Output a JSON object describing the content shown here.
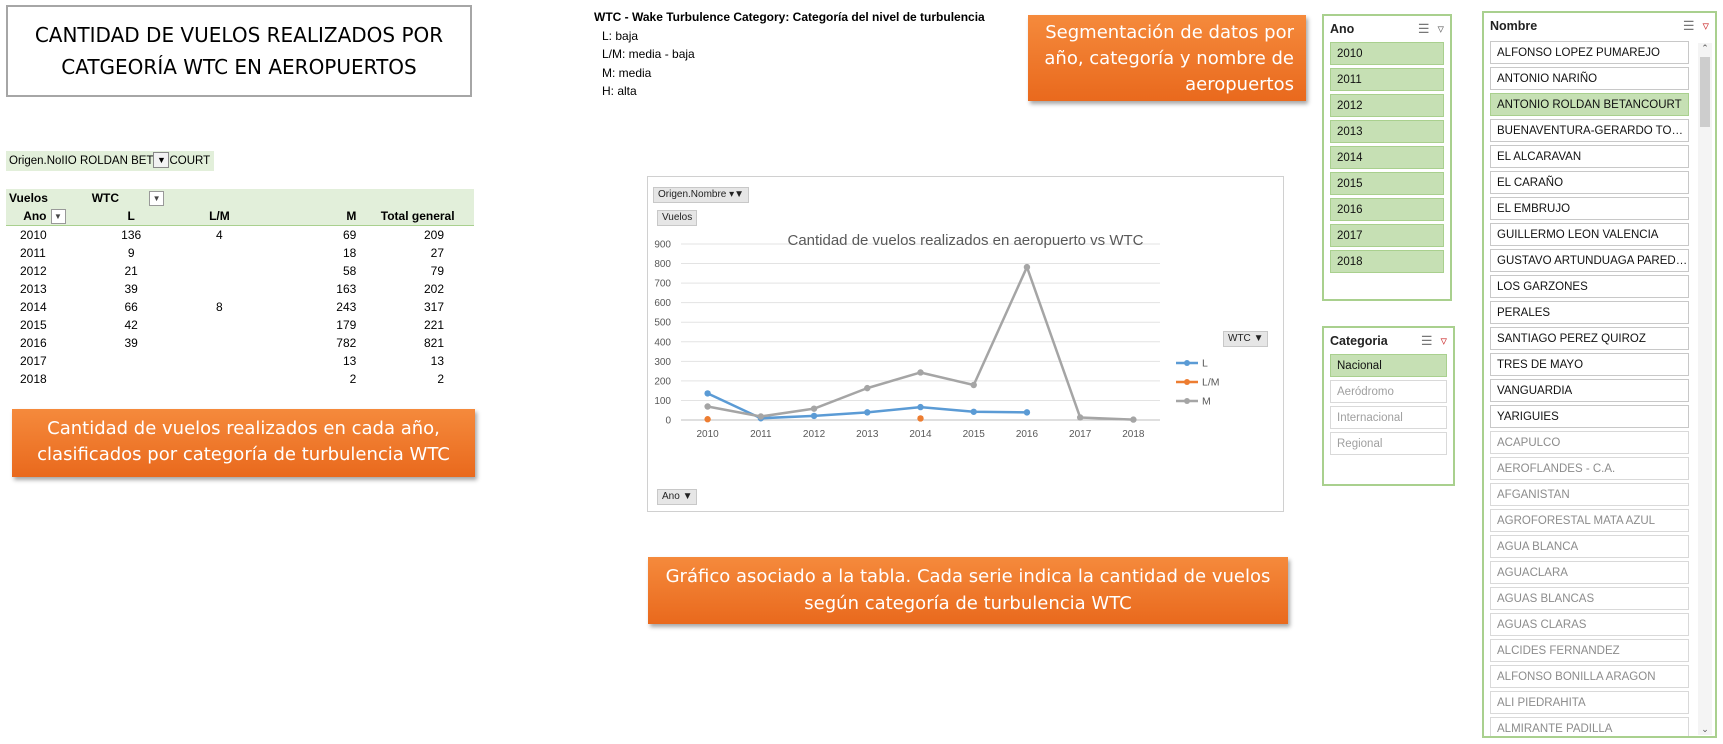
{
  "title": {
    "line1": "CANTIDAD DE VUELOS REALIZADOS POR",
    "line2": "CATGEORÍA WTC EN AEROPUERTOS"
  },
  "wtc_legend": {
    "header": "WTC - Wake Turbulence Category: Categoría del nivel de turbulencia",
    "items": [
      "L: baja",
      "L/M: media - baja",
      "M: media",
      "H: alta"
    ]
  },
  "callouts": {
    "segmentacion": "Segmentación de datos por año, categoría y nombre de aeropuertos",
    "tabla": "Cantidad de vuelos realizados en cada año, clasificados por categoría de turbulencia WTC",
    "grafico": "Gráfico asociado a la tabla. Cada serie indica la cantidad de vuelos según categoría de turbulencia WTC"
  },
  "pivot_filter": {
    "label": "Origen.No",
    "value": "IIO ROLDAN BET",
    "value_tail": "COURT",
    "icon": "filter-icon"
  },
  "pivot": {
    "value_field": "Vuelos",
    "column_field": "WTC",
    "row_field": "Ano",
    "headers": [
      "L",
      "L/M",
      "M",
      "Total general"
    ],
    "rows": [
      {
        "ano": "2010",
        "l": "136",
        "lm": "4",
        "m": "69",
        "total": "209"
      },
      {
        "ano": "2011",
        "l": "9",
        "lm": "",
        "m": "18",
        "total": "27"
      },
      {
        "ano": "2012",
        "l": "21",
        "lm": "",
        "m": "58",
        "total": "79"
      },
      {
        "ano": "2013",
        "l": "39",
        "lm": "",
        "m": "163",
        "total": "202"
      },
      {
        "ano": "2014",
        "l": "66",
        "lm": "8",
        "m": "243",
        "total": "317"
      },
      {
        "ano": "2015",
        "l": "42",
        "lm": "",
        "m": "179",
        "total": "221"
      },
      {
        "ano": "2016",
        "l": "39",
        "lm": "",
        "m": "782",
        "total": "821"
      },
      {
        "ano": "2017",
        "l": "",
        "lm": "",
        "m": "13",
        "total": "13"
      },
      {
        "ano": "2018",
        "l": "",
        "lm": "",
        "m": "2",
        "total": "2"
      }
    ]
  },
  "chart_chips": {
    "filter": "Origen.Nombre",
    "values": "Vuelos",
    "axis": "Ano",
    "legend": "WTC"
  },
  "chart_data": {
    "type": "line",
    "title": "Cantidad de vuelos realizados en aeropuerto vs WTC",
    "xlabel": "",
    "ylabel": "",
    "categories": [
      "2010",
      "2011",
      "2012",
      "2013",
      "2014",
      "2015",
      "2016",
      "2017",
      "2018"
    ],
    "ylim": [
      0,
      900
    ],
    "yticks": [
      0,
      100,
      200,
      300,
      400,
      500,
      600,
      700,
      800,
      900
    ],
    "grid": true,
    "legend": "right",
    "series": [
      {
        "name": "L",
        "color": "#5b9bd5",
        "values": [
          136,
          9,
          21,
          39,
          66,
          42,
          39,
          null,
          null
        ]
      },
      {
        "name": "L/M",
        "color": "#ed7d31",
        "values": [
          4,
          null,
          null,
          null,
          8,
          null,
          null,
          null,
          null
        ]
      },
      {
        "name": "M",
        "color": "#a5a5a5",
        "values": [
          69,
          18,
          58,
          163,
          243,
          179,
          782,
          13,
          2
        ]
      }
    ]
  },
  "slicers": {
    "ano": {
      "title": "Ano",
      "items": [
        {
          "label": "2010",
          "state": "on"
        },
        {
          "label": "2011",
          "state": "on"
        },
        {
          "label": "2012",
          "state": "on"
        },
        {
          "label": "2013",
          "state": "on"
        },
        {
          "label": "2014",
          "state": "on"
        },
        {
          "label": "2015",
          "state": "on"
        },
        {
          "label": "2016",
          "state": "on"
        },
        {
          "label": "2017",
          "state": "on"
        },
        {
          "label": "2018",
          "state": "on"
        }
      ]
    },
    "categoria": {
      "title": "Categoria",
      "items": [
        {
          "label": "Nacional",
          "state": "on"
        },
        {
          "label": "Aeródromo",
          "state": "off"
        },
        {
          "label": "Internacional",
          "state": "off"
        },
        {
          "label": "Regional",
          "state": "off"
        }
      ]
    },
    "nombre": {
      "title": "Nombre",
      "items": [
        {
          "label": "ALFONSO LOPEZ PUMAREJO",
          "state": "onw"
        },
        {
          "label": "ANTONIO NARIÑO",
          "state": "onw"
        },
        {
          "label": "ANTONIO ROLDAN BETANCOURT",
          "state": "on"
        },
        {
          "label": "BUENAVENTURA-GERARDO TOBA...",
          "state": "onw"
        },
        {
          "label": "EL ALCARAVAN",
          "state": "onw"
        },
        {
          "label": "EL CARAÑO",
          "state": "onw"
        },
        {
          "label": "EL EMBRUJO",
          "state": "onw"
        },
        {
          "label": "GUILLERMO LEON VALENCIA",
          "state": "onw"
        },
        {
          "label": "GUSTAVO ARTUNDUAGA PAREDES",
          "state": "onw"
        },
        {
          "label": "LOS GARZONES",
          "state": "onw"
        },
        {
          "label": "PERALES",
          "state": "onw"
        },
        {
          "label": "SANTIAGO PEREZ QUIROZ",
          "state": "onw"
        },
        {
          "label": "TRES DE MAYO",
          "state": "onw"
        },
        {
          "label": "VANGUARDIA",
          "state": "onw"
        },
        {
          "label": "YARIGUIES",
          "state": "onw"
        },
        {
          "label": "ACAPULCO",
          "state": "off"
        },
        {
          "label": "AEROFLANDES - C.A.",
          "state": "off"
        },
        {
          "label": "AFGANISTAN",
          "state": "off"
        },
        {
          "label": "AGROFORESTAL MATA AZUL",
          "state": "off"
        },
        {
          "label": "AGUA BLANCA",
          "state": "off"
        },
        {
          "label": "AGUACLARA",
          "state": "off"
        },
        {
          "label": "AGUAS BLANCAS",
          "state": "off"
        },
        {
          "label": "AGUAS CLARAS",
          "state": "off"
        },
        {
          "label": "ALCIDES FERNANDEZ",
          "state": "off"
        },
        {
          "label": "ALFONSO BONILLA ARAGON",
          "state": "off"
        },
        {
          "label": "ALI PIEDRAHITA",
          "state": "off"
        },
        {
          "label": "ALMIRANTE PADILLA",
          "state": "off"
        }
      ]
    }
  }
}
